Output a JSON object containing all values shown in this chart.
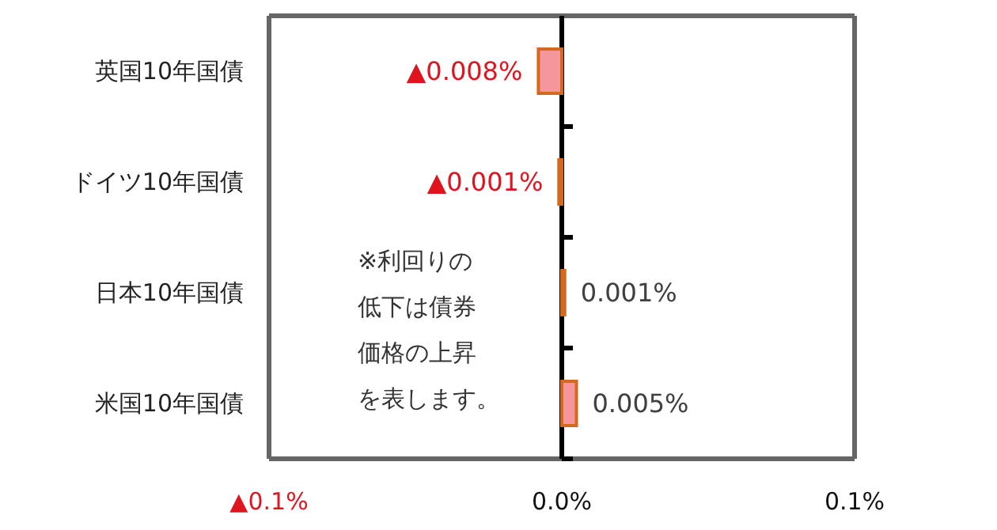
{
  "chart_data": {
    "type": "bar",
    "orientation": "horizontal",
    "categories": [
      "英国10年国債",
      "ドイツ10年国債",
      "日本10年国債",
      "米国10年国債"
    ],
    "values": [
      -0.008,
      -0.001,
      0.001,
      0.005
    ],
    "color": "#f4969b",
    "xlim": [
      -0.1,
      0.1
    ],
    "xticks": [
      {
        "value": -0.1,
        "label": "▲0.1%"
      },
      {
        "value": 0,
        "label": "0.0%"
      },
      {
        "value": 0.1,
        "label": "0.1%"
      }
    ],
    "annotations": [
      "※利回りの低下は債券価格の上昇を表します。",
      {
        "text": "▲0.008%",
        "x": -0.008,
        "y": "英国10年国債"
      },
      {
        "text": "▲0.001%",
        "x": -0.001,
        "y": "ドイツ10年国債"
      },
      {
        "text": "0.001%",
        "x": 0.001,
        "y": "日本10年国債"
      },
      {
        "text": "0.005%",
        "x": 0.005,
        "y": "米国10年国債"
      }
    ],
    "grid": "x"
  }
}
